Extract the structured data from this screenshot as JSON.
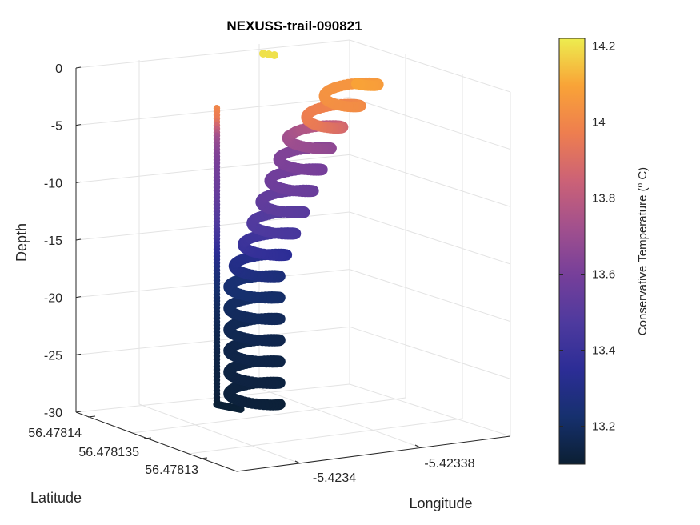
{
  "chart_data": {
    "type": "scatter3d",
    "title": "NEXUSS-trail-090821",
    "xlabel": "Longitude",
    "ylabel": "Latitude",
    "zlabel": "Depth",
    "zlim": [
      -30,
      0
    ],
    "z_ticks": [
      "0",
      "-5",
      "-10",
      "-15",
      "-20",
      "-25",
      "-30"
    ],
    "lat_ticks": [
      "56.47814",
      "56.478135",
      "56.47813"
    ],
    "lon_ticks": [
      "-5.4234",
      "-5.42338"
    ],
    "grid": true,
    "colorbar": {
      "label_prefix": "Conservative Temperature (",
      "label_sup": "o",
      "label_suffix": " C)",
      "ticks": [
        "14.2",
        "14",
        "13.8",
        "13.6",
        "13.4",
        "13.2"
      ],
      "tick_values": [
        14.2,
        14.0,
        13.8,
        13.6,
        13.4,
        13.2
      ],
      "range": [
        13.1,
        14.22
      ],
      "colormap": [
        "#0b1f33",
        "#16306e",
        "#2c2d96",
        "#4e3a9e",
        "#763f9a",
        "#a2508d",
        "#cc6276",
        "#ee7e4f",
        "#f9a337",
        "#eded4f"
      ]
    },
    "series": [
      {
        "points": [
          {
            "depth": -30.0,
            "temp": 13.1
          },
          {
            "depth": -28.5,
            "temp": 13.12
          },
          {
            "depth": -27.0,
            "temp": 13.13
          },
          {
            "depth": -25.5,
            "temp": 13.14
          },
          {
            "depth": -24.0,
            "temp": 13.15
          },
          {
            "depth": -22.5,
            "temp": 13.17
          },
          {
            "depth": -21.0,
            "temp": 13.19
          },
          {
            "depth": -19.5,
            "temp": 13.22
          },
          {
            "depth": -18.0,
            "temp": 13.26
          },
          {
            "depth": -16.5,
            "temp": 13.33
          },
          {
            "depth": -15.0,
            "temp": 13.42
          },
          {
            "depth": -13.5,
            "temp": 13.48
          },
          {
            "depth": -12.0,
            "temp": 13.52
          },
          {
            "depth": -10.5,
            "temp": 13.56
          },
          {
            "depth": -9.0,
            "temp": 13.59
          },
          {
            "depth": -7.5,
            "temp": 13.63
          },
          {
            "depth": -6.0,
            "temp": 13.72
          },
          {
            "depth": -4.5,
            "temp": 13.95
          },
          {
            "depth": -3.0,
            "temp": 14.02
          },
          {
            "depth": -1.5,
            "temp": 14.06
          },
          {
            "depth": 1.0,
            "temp": 14.2
          }
        ]
      }
    ]
  }
}
